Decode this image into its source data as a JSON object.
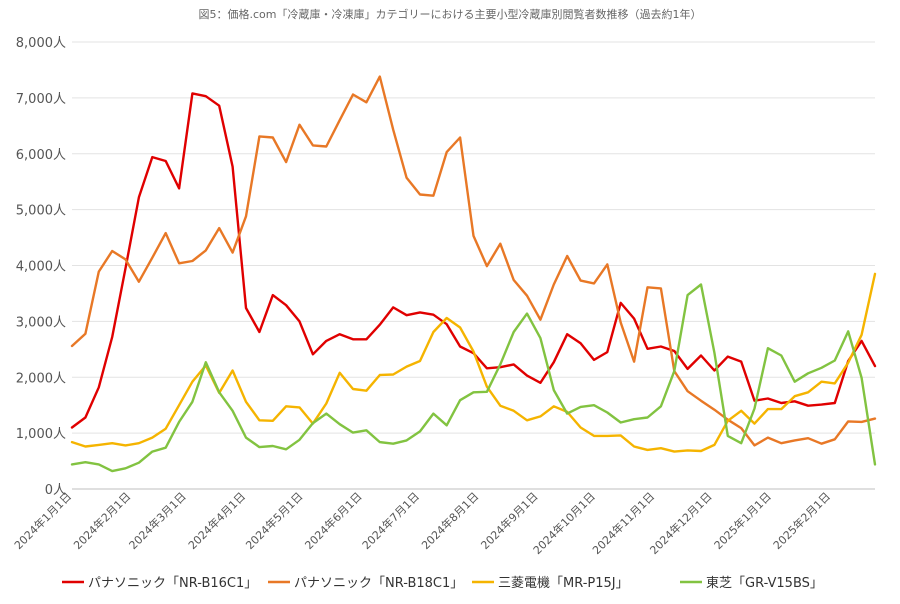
{
  "chart_data": {
    "type": "line",
    "title": "図5：価格.com「冷蔵庫・冷凍庫」カテゴリーにおける主要小型冷蔵庫別閲覧者数推移（過去約1年）",
    "ylim": [
      0,
      8000
    ],
    "yticks": [
      "0人",
      "1,000人",
      "2,000人",
      "3,000人",
      "4,000人",
      "5,000人",
      "6,000人",
      "7,000人",
      "8,000人"
    ],
    "x_tick_labels": [
      "2024年1月1日",
      "2024年2月1日",
      "2024年3月1日",
      "2024年4月1日",
      "2024年5月1日",
      "2024年6月1日",
      "2024年7月1日",
      "2024年8月1日",
      "2024年9月1日",
      "2024年10月1日",
      "2024年11月1日",
      "2024年12月1日",
      "2025年1月1日",
      "2025年2月1日"
    ],
    "x_tick_positions": [
      0,
      4.43,
      8.57,
      13,
      17.29,
      21.71,
      26,
      30.43,
      34.86,
      39.14,
      43.57,
      47.86,
      52.29,
      56.71
    ],
    "grid": true,
    "legend_position": "bottom",
    "series": [
      {
        "name": "パナソニック「NR-B16C1」",
        "color": "#e00000",
        "values": [
          1100,
          1280,
          1820,
          2720,
          3950,
          5220,
          5940,
          5870,
          5380,
          7080,
          7030,
          6860,
          5770,
          3240,
          2810,
          3470,
          3290,
          3000,
          2410,
          2650,
          2770,
          2680,
          2680,
          2940,
          3250,
          3110,
          3160,
          3120,
          2950,
          2550,
          2430,
          2160,
          2180,
          2230,
          2030,
          1900,
          2270,
          2770,
          2610,
          2310,
          2450,
          3330,
          3050,
          2510,
          2550,
          2470,
          2150,
          2390,
          2120,
          2370,
          2280,
          1580,
          1620,
          1540,
          1570,
          1490,
          1510,
          1540,
          2290,
          2650,
          2200
        ]
      },
      {
        "name": "パナソニック「NR-B18C1」",
        "color": "#e87826",
        "values": [
          2560,
          2780,
          3890,
          4260,
          4110,
          3710,
          4140,
          4580,
          4040,
          4080,
          4270,
          4670,
          4230,
          4880,
          6310,
          6290,
          5850,
          6520,
          6150,
          6130,
          6600,
          7060,
          6920,
          7380,
          6430,
          5570,
          5270,
          5250,
          6030,
          6290,
          4530,
          3990,
          4390,
          3740,
          3460,
          3030,
          3660,
          4170,
          3730,
          3680,
          4020,
          2980,
          2280,
          3610,
          3590,
          2110,
          1750,
          1580,
          1420,
          1240,
          1090,
          780,
          920,
          820,
          870,
          910,
          810,
          890,
          1210,
          1200,
          1260
        ]
      },
      {
        "name": "三菱電機「MR-P15J」",
        "color": "#f5b400",
        "values": [
          840,
          760,
          790,
          820,
          780,
          820,
          920,
          1080,
          1500,
          1920,
          2210,
          1720,
          2120,
          1560,
          1230,
          1220,
          1480,
          1460,
          1170,
          1530,
          2080,
          1790,
          1760,
          2040,
          2050,
          2190,
          2290,
          2810,
          3060,
          2890,
          2460,
          1830,
          1490,
          1400,
          1230,
          1300,
          1480,
          1380,
          1100,
          950,
          950,
          960,
          760,
          700,
          730,
          670,
          690,
          680,
          790,
          1220,
          1400,
          1170,
          1430,
          1430,
          1660,
          1730,
          1920,
          1890,
          2260,
          2760,
          3850
        ]
      },
      {
        "name": "東芝「GR-V15BS」",
        "color": "#82c341",
        "values": [
          440,
          480,
          440,
          320,
          370,
          470,
          670,
          740,
          1200,
          1560,
          2270,
          1730,
          1400,
          920,
          750,
          770,
          710,
          880,
          1180,
          1350,
          1160,
          1010,
          1050,
          840,
          810,
          870,
          1030,
          1350,
          1140,
          1590,
          1730,
          1740,
          2230,
          2810,
          3140,
          2700,
          1770,
          1350,
          1470,
          1500,
          1370,
          1190,
          1250,
          1280,
          1480,
          2110,
          3470,
          3660,
          2440,
          950,
          820,
          1440,
          2520,
          2390,
          1920,
          2070,
          2170,
          2300,
          2820,
          1990,
          440
        ]
      }
    ]
  }
}
